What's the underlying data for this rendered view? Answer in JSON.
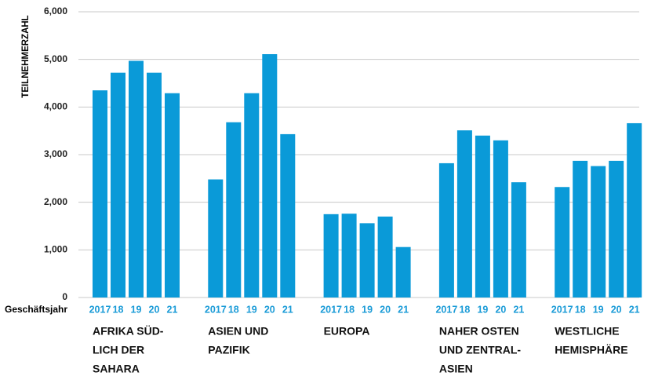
{
  "chart_data": {
    "type": "bar",
    "y_label": "TEILNEHMERZAHL",
    "x_label": "Geschäftsjahr",
    "color": "#0a9ad8",
    "ylim": [
      0,
      6000
    ],
    "yticks": [
      0,
      {
        "value": 1000,
        "label": "1,000"
      },
      {
        "value": 2000,
        "label": "2,000"
      },
      {
        "value": 3000,
        "label": "3,000"
      },
      {
        "value": 4000,
        "label": "4,000"
      },
      {
        "value": 5000,
        "label": "5,000"
      },
      {
        "value": 6000,
        "label": "6,000"
      }
    ],
    "grid": true,
    "groups": [
      {
        "label": [
          "AFRIKA SÜD-",
          "LICH DER",
          "SAHARA"
        ],
        "categories": [
          "2017",
          "18",
          "19",
          "20",
          "21"
        ],
        "values": [
          4350,
          4720,
          4970,
          4720,
          4290
        ]
      },
      {
        "label": [
          "ASIEN UND",
          "PAZIFIK"
        ],
        "categories": [
          "2017",
          "18",
          "19",
          "20",
          "21"
        ],
        "values": [
          2480,
          3680,
          4290,
          5110,
          3430
        ]
      },
      {
        "label": [
          "EUROPA"
        ],
        "categories": [
          "2017",
          "18",
          "19",
          "20",
          "21"
        ],
        "values": [
          1750,
          1760,
          1560,
          1700,
          1060
        ]
      },
      {
        "label": [
          "NAHER OSTEN",
          "UND ZENTRAL-",
          "ASIEN"
        ],
        "categories": [
          "2017",
          "18",
          "19",
          "20",
          "21"
        ],
        "values": [
          2820,
          3510,
          3400,
          3300,
          2420
        ]
      },
      {
        "label": [
          "WESTLICHE",
          "HEMISPHÄRE"
        ],
        "categories": [
          "2017",
          "18",
          "19",
          "20",
          "21"
        ],
        "values": [
          2320,
          2870,
          2760,
          2870,
          3660
        ]
      }
    ]
  }
}
